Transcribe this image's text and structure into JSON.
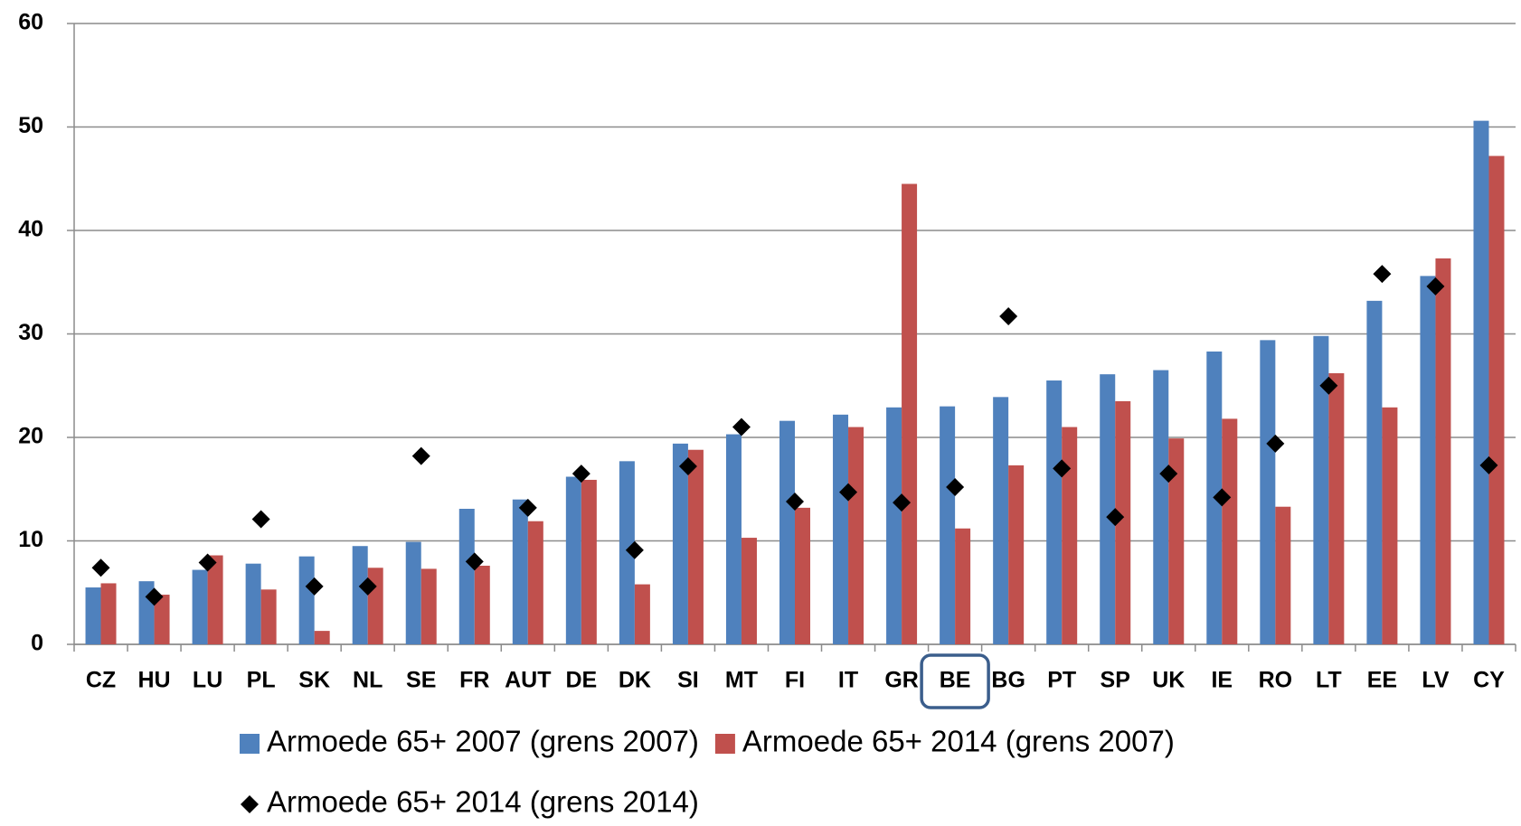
{
  "chart_data": {
    "type": "bar",
    "categories": [
      "CZ",
      "HU",
      "LU",
      "PL",
      "SK",
      "NL",
      "SE",
      "FR",
      "AUT",
      "DE",
      "DK",
      "SI",
      "MT",
      "FI",
      "IT",
      "GR",
      "BE",
      "BG",
      "PT",
      "SP",
      "UK",
      "IE",
      "RO",
      "LT",
      "EE",
      "LV",
      "CY"
    ],
    "series": [
      {
        "name": "Armoede 65+ 2007 (grens 2007)",
        "type": "bar",
        "color": "#4f81bd",
        "values": [
          5.5,
          6.1,
          7.2,
          7.8,
          8.5,
          9.5,
          9.9,
          13.1,
          14.0,
          16.2,
          17.7,
          19.4,
          20.3,
          21.6,
          22.2,
          22.9,
          23.0,
          23.9,
          25.5,
          26.1,
          26.5,
          28.3,
          29.4,
          29.8,
          33.2,
          35.6,
          50.6
        ]
      },
      {
        "name": "Armoede 65+ 2014 (grens 2007)",
        "type": "bar",
        "color": "#c0504d",
        "values": [
          5.9,
          4.8,
          8.6,
          5.3,
          1.3,
          7.4,
          7.3,
          7.6,
          11.9,
          15.9,
          5.8,
          18.8,
          10.3,
          13.2,
          21.0,
          44.5,
          11.2,
          17.3,
          21.0,
          23.5,
          19.9,
          21.8,
          13.3,
          26.2,
          22.9,
          37.3,
          47.2
        ]
      },
      {
        "name": "Armoede 65+ 2014 (grens 2014)",
        "type": "scatter",
        "color": "#000000",
        "values": [
          7.4,
          4.6,
          7.9,
          12.1,
          5.6,
          5.6,
          18.2,
          8.0,
          13.2,
          16.5,
          9.1,
          17.2,
          21.0,
          13.8,
          14.7,
          13.7,
          15.2,
          31.7,
          17.0,
          12.3,
          16.5,
          14.2,
          19.4,
          25.0,
          35.8,
          34.6,
          17.3
        ]
      }
    ],
    "ylim": [
      0,
      60
    ],
    "yticks": [
      0,
      10,
      20,
      30,
      40,
      50,
      60
    ],
    "grid": true
  }
}
